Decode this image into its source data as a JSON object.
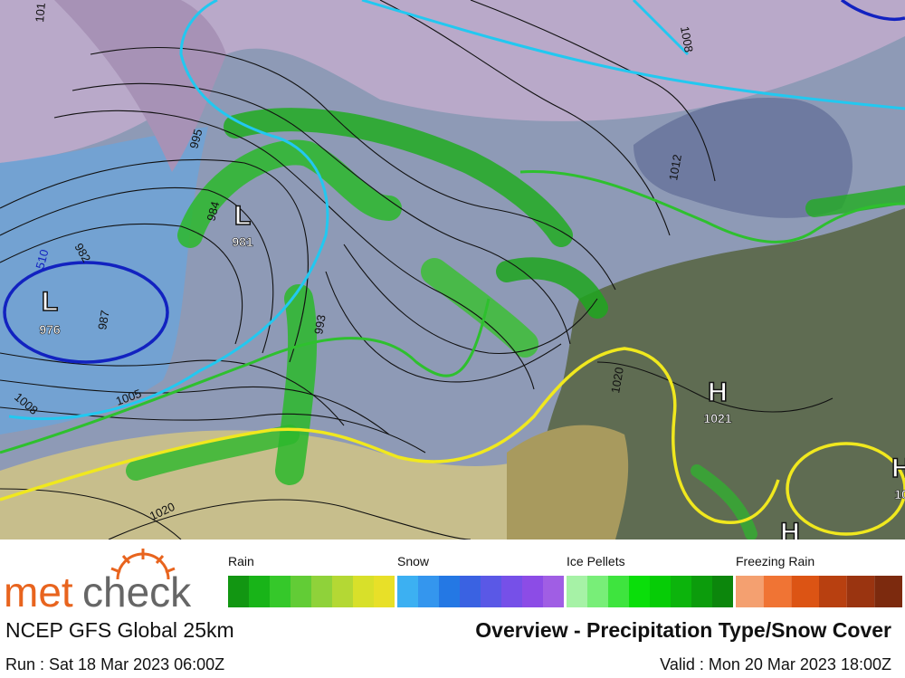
{
  "map": {
    "centers": [
      {
        "kind": "L",
        "value": "981"
      },
      {
        "kind": "L",
        "value": "976"
      },
      {
        "kind": "H",
        "value": "1021"
      },
      {
        "kind": "H",
        "value": "10"
      },
      {
        "kind": "H"
      }
    ],
    "isobar_labels": [
      "995",
      "984",
      "982",
      "987",
      "510",
      "1005",
      "1008",
      "993",
      "1020",
      "1020",
      "1008",
      "1012",
      "101"
    ]
  },
  "legend": {
    "groups": [
      {
        "name": "Rain",
        "colors": [
          "#129612",
          "#18b418",
          "#35c82a",
          "#62cc36",
          "#8fd23a",
          "#b4d834",
          "#d8e02a",
          "#e8e028"
        ]
      },
      {
        "name": "Snow",
        "colors": [
          "#3cb0f2",
          "#3496ee",
          "#2478e4",
          "#3a62e2",
          "#5a58e6",
          "#7650e8",
          "#8c4ce6",
          "#a05ee4"
        ]
      },
      {
        "name": "Ice Pellets",
        "colors": [
          "#a6f2a6",
          "#78ee78",
          "#3ee43e",
          "#0ade0a",
          "#06cc06",
          "#0cb40c",
          "#0c9c0c",
          "#0c860c"
        ]
      },
      {
        "name": "Freezing Rain",
        "colors": [
          "#f4a070",
          "#f07434",
          "#dc5414",
          "#b84010",
          "#9a3410",
          "#7c2a0e"
        ]
      }
    ]
  },
  "footer": {
    "brand_a": "met",
    "brand_b": "check",
    "model": "NCEP GFS Global 25km",
    "title": "Overview - Precipitation Type/Snow Cover",
    "run": "Run : Sat 18 Mar 2023 06:00Z",
    "valid": "Valid : Mon 20 Mar 2023 18:00Z"
  }
}
